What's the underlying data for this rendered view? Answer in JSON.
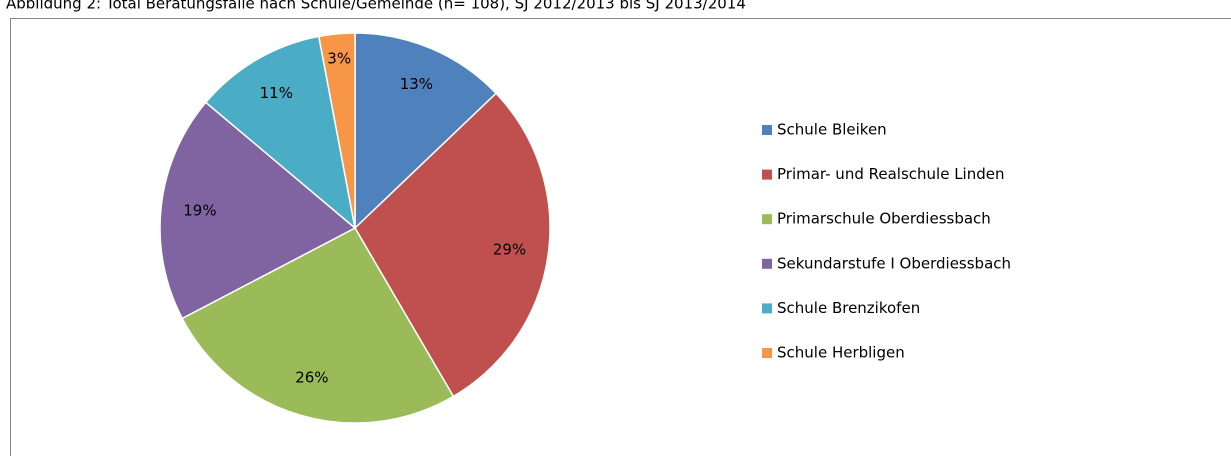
{
  "chart_data": {
    "type": "pie",
    "title": "Abbildung 2: Total Beratungsfälle nach Schule/Gemeinde (n= 108), SJ 2012/2013 bis SJ 2013/2014",
    "categories": [
      "Schule Bleiken",
      "Primar- und Realschule Linden",
      "Primarschule Oberdiessbach",
      "Sekundarstufe I Oberdiessbach",
      "Schule Brenzikofen",
      "Schule Herbligen"
    ],
    "values": [
      13,
      29,
      26,
      19,
      11,
      3
    ],
    "value_labels": [
      "13%",
      "29%",
      "26%",
      "19%",
      "11%",
      "3%"
    ],
    "colors": [
      "#4f81bd",
      "#c0504d",
      "#9bbb59",
      "#8064a2",
      "#4bacc6",
      "#f79646"
    ],
    "legend": "right"
  }
}
